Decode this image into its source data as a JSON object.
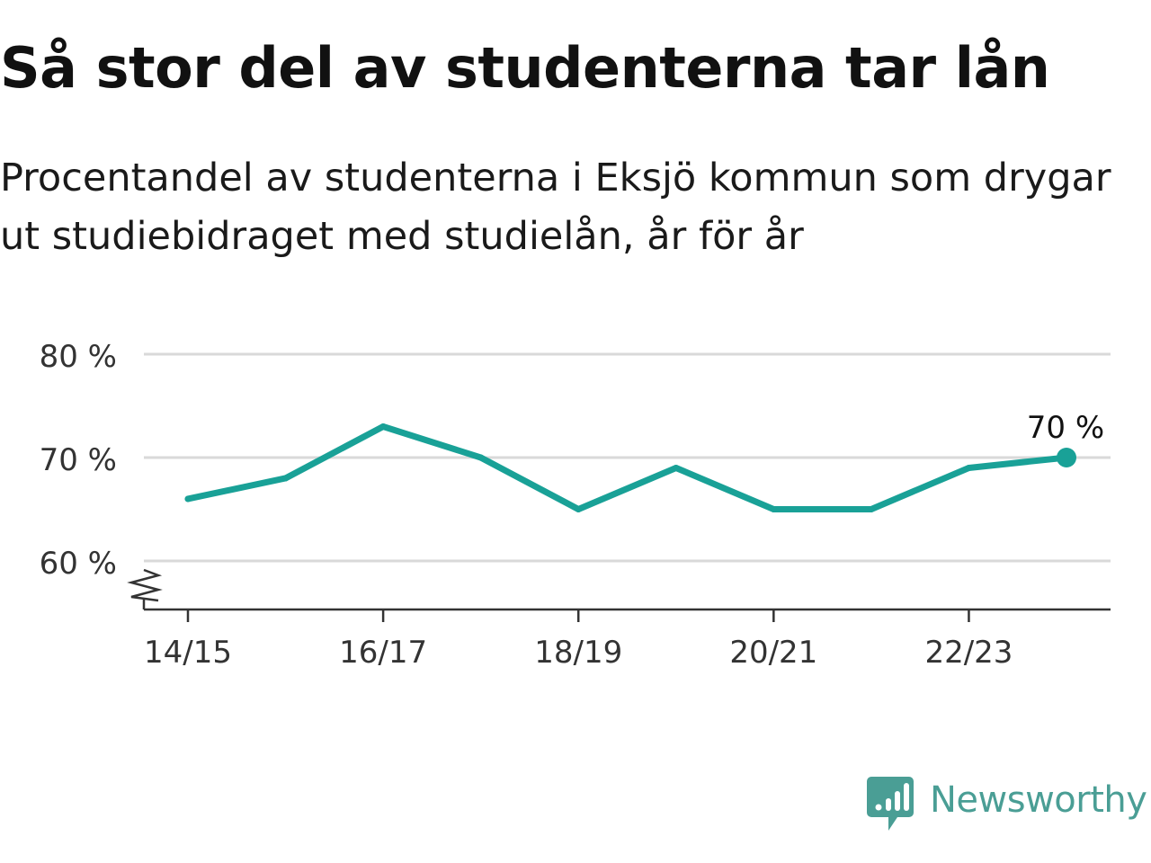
{
  "title": "Så stor del av studenterna tar lån",
  "subtitle": "Procentandel av studenterna i Eksjö kommun som drygar ut studiebidraget med studielån, år för år",
  "chart_data": {
    "type": "line",
    "x": [
      "14/15",
      "15/16",
      "16/17",
      "17/18",
      "18/19",
      "19/20",
      "20/21",
      "21/22",
      "22/23",
      "23/24"
    ],
    "series": [
      {
        "values": [
          66,
          68,
          73,
          70,
          65,
          69,
          65,
          65,
          69,
          70
        ]
      }
    ],
    "x_tick_labels": [
      "14/15",
      "16/17",
      "18/19",
      "20/21",
      "22/23"
    ],
    "y_ticks": [
      60,
      70,
      80
    ],
    "y_tick_labels": [
      "60 %",
      "70 %",
      "80 %"
    ],
    "ylim": [
      55.3,
      80
    ],
    "y_axis_break": true,
    "grid": true,
    "end_label": "70 %",
    "line_color": "#19a197"
  },
  "brand": {
    "name": "Newsworthy",
    "icon": "bar-chart-speech-bubble-icon",
    "color": "#4a9e95"
  }
}
